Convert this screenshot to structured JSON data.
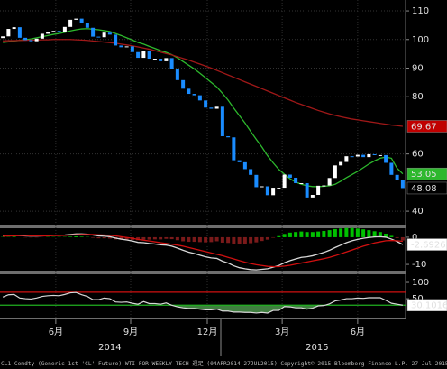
{
  "chart_data": [
    {
      "type": "candlestick",
      "open": [
        100.5,
        101.1,
        103.7,
        104.3,
        100.6,
        99.8,
        99.4,
        100.3,
        102.0,
        102.7,
        103.0,
        102.7,
        104.4,
        106.9,
        107.3,
        105.7,
        104.1,
        101.0,
        100.8,
        102.4,
        101.7,
        97.9,
        97.3,
        97.6,
        95.6,
        93.6,
        96.0,
        93.3,
        93.3,
        92.4,
        93.5,
        89.7,
        85.8,
        82.8,
        81.0,
        80.5,
        78.7,
        76.2,
        75.8,
        76.5,
        66.2,
        65.8,
        57.8,
        57.1,
        54.7,
        52.7,
        48.4,
        48.7,
        45.6,
        48.2,
        48.2,
        52.8,
        51.7,
        49.8,
        49.8,
        44.8,
        45.7,
        48.9,
        49.0,
        51.6,
        56.0,
        57.2,
        59.2,
        59.1,
        59.7,
        58.9,
        59.9,
        59.6,
        59.6,
        56.9,
        52.7,
        50.9
      ],
      "close": [
        101.1,
        103.7,
        104.3,
        100.6,
        99.8,
        99.4,
        100.3,
        102.0,
        102.7,
        103.0,
        102.7,
        104.4,
        106.9,
        107.3,
        105.7,
        104.1,
        101.0,
        100.8,
        102.4,
        101.7,
        97.9,
        97.3,
        97.6,
        95.6,
        93.6,
        96.0,
        93.3,
        93.3,
        92.4,
        93.5,
        89.7,
        85.8,
        82.8,
        81.0,
        80.5,
        78.7,
        76.2,
        75.8,
        76.5,
        66.2,
        65.8,
        57.8,
        57.1,
        54.7,
        52.7,
        48.4,
        48.7,
        45.6,
        48.2,
        48.2,
        52.8,
        51.7,
        49.8,
        49.8,
        44.8,
        45.7,
        48.9,
        49.0,
        51.6,
        56.0,
        57.2,
        59.2,
        59.1,
        59.7,
        58.9,
        59.9,
        59.6,
        59.6,
        56.9,
        52.7,
        50.9,
        48.08
      ],
      "up_color": "#ffffff",
      "down_color": "#1a8cff",
      "close_tag": {
        "bg": "#000000",
        "fg": "#ffffff"
      },
      "lines": [
        {
          "color": "#2db82d",
          "tag": {
            "bg": "#2db82d",
            "fg": "#000000"
          },
          "values": [
            99.0,
            99.2,
            99.5,
            99.7,
            99.9,
            100.2,
            100.6,
            101.0,
            101.4,
            101.8,
            102.1,
            102.5,
            103.0,
            103.4,
            103.7,
            103.8,
            103.6,
            103.4,
            103.1,
            102.8,
            102.1,
            101.4,
            100.6,
            99.8,
            99.0,
            98.4,
            97.6,
            96.9,
            96.1,
            95.5,
            94.7,
            93.6,
            92.3,
            91.0,
            89.7,
            88.2,
            86.6,
            85.0,
            83.4,
            81.2,
            78.8,
            76.0,
            73.4,
            70.8,
            67.9,
            65.1,
            62.4,
            59.4,
            56.9,
            54.6,
            52.9,
            51.3,
            50.2,
            49.4,
            48.9,
            48.6,
            48.6,
            48.7,
            48.9,
            49.4,
            50.5,
            51.7,
            52.8,
            53.9,
            55.2,
            56.5,
            57.6,
            58.5,
            58.9,
            58.5,
            55.0,
            53.05
          ]
        },
        {
          "color": "#a01818",
          "tag": {
            "bg": "#c00000",
            "fg": "#ffffff"
          },
          "values": [
            99.5,
            99.6,
            99.6,
            99.7,
            99.7,
            99.8,
            99.8,
            99.9,
            99.9,
            100.0,
            100.0,
            100.0,
            100.0,
            99.9,
            99.8,
            99.7,
            99.5,
            99.3,
            99.1,
            98.9,
            98.7,
            98.4,
            98.1,
            97.8,
            97.4,
            97.0,
            96.6,
            96.1,
            95.6,
            95.1,
            94.6,
            94.0,
            93.4,
            92.8,
            92.1,
            91.4,
            90.7,
            90.0,
            89.2,
            88.4,
            87.6,
            86.8,
            86.0,
            85.2,
            84.4,
            83.6,
            82.8,
            82.0,
            81.2,
            80.4,
            79.6,
            78.8,
            78.0,
            77.3,
            76.6,
            75.9,
            75.2,
            74.6,
            74.0,
            73.5,
            73.0,
            72.6,
            72.2,
            71.9,
            71.6,
            71.3,
            71.0,
            70.7,
            70.4,
            70.1,
            69.9,
            69.67
          ]
        }
      ],
      "ylim": [
        35.3,
        113.8
      ],
      "yticks": [
        40,
        60,
        80,
        90,
        100,
        110
      ],
      "grid": true
    },
    {
      "type": "macd",
      "histogram": [
        0.1,
        0.1,
        0.2,
        0.0,
        -0.1,
        -0.1,
        -0.1,
        0.0,
        0.1,
        0.1,
        0.1,
        0.1,
        0.2,
        0.3,
        0.2,
        0.1,
        -0.2,
        -0.4,
        -0.4,
        -0.5,
        -0.8,
        -0.9,
        -0.9,
        -1.0,
        -1.1,
        -0.9,
        -0.9,
        -0.8,
        -0.8,
        -0.6,
        -0.7,
        -1.1,
        -1.5,
        -1.7,
        -1.7,
        -1.8,
        -1.9,
        -1.8,
        -1.5,
        -2.0,
        -2.1,
        -2.5,
        -2.6,
        -2.4,
        -2.2,
        -1.9,
        -1.4,
        -0.9,
        -0.2,
        0.4,
        1.2,
        1.7,
        1.9,
        2.1,
        1.9,
        1.9,
        2.1,
        2.3,
        2.6,
        3.0,
        3.2,
        3.4,
        3.4,
        3.2,
        2.9,
        2.6,
        2.2,
        1.9,
        1.3,
        0.5,
        -0.3,
        -1.2
      ],
      "hist_colors": {
        "pos": "#00c000",
        "neg": "#7a1a1a"
      },
      "series": [
        {
          "color": "#d8d8d8",
          "tag": {
            "bg": "#ffffff",
            "fg": "#000000"
          },
          "values": [
            0.5,
            0.6,
            0.7,
            0.6,
            0.5,
            0.4,
            0.4,
            0.5,
            0.6,
            0.7,
            0.7,
            0.8,
            1.0,
            1.2,
            1.2,
            1.1,
            0.8,
            0.5,
            0.4,
            0.2,
            -0.3,
            -0.7,
            -1.0,
            -1.4,
            -1.9,
            -2.0,
            -2.3,
            -2.5,
            -2.8,
            -2.9,
            -3.3,
            -4.0,
            -4.8,
            -5.5,
            -6.0,
            -6.6,
            -7.2,
            -7.6,
            -7.8,
            -8.8,
            -9.5,
            -10.5,
            -11.2,
            -11.6,
            -11.9,
            -12.0,
            -11.8,
            -11.6,
            -11.0,
            -10.4,
            -9.4,
            -8.6,
            -8.0,
            -7.4,
            -7.2,
            -6.8,
            -6.2,
            -5.6,
            -4.8,
            -3.8,
            -2.9,
            -2.0,
            -1.3,
            -0.8,
            -0.4,
            -0.1,
            0.1,
            0.2,
            0.0,
            -0.7,
            -1.6,
            -2.6926
          ]
        },
        {
          "color": "#d01010",
          "values": [
            0.4,
            0.5,
            0.5,
            0.6,
            0.6,
            0.5,
            0.5,
            0.5,
            0.5,
            0.6,
            0.6,
            0.7,
            0.8,
            0.9,
            1.0,
            1.0,
            1.0,
            0.9,
            0.8,
            0.7,
            0.5,
            0.2,
            -0.1,
            -0.4,
            -0.8,
            -1.1,
            -1.4,
            -1.7,
            -2.0,
            -2.3,
            -2.6,
            -2.9,
            -3.3,
            -3.8,
            -4.3,
            -4.8,
            -5.3,
            -5.8,
            -6.3,
            -6.8,
            -7.4,
            -8.0,
            -8.6,
            -9.2,
            -9.7,
            -10.1,
            -10.4,
            -10.7,
            -10.8,
            -10.8,
            -10.6,
            -10.3,
            -9.9,
            -9.5,
            -9.1,
            -8.7,
            -8.3,
            -7.9,
            -7.4,
            -6.8,
            -6.1,
            -5.4,
            -4.7,
            -4.0,
            -3.3,
            -2.7,
            -2.1,
            -1.7,
            -1.3,
            -1.2,
            -1.3,
            -1.5
          ]
        }
      ],
      "ylim": [
        -12.3,
        3.3
      ],
      "yticks": [
        -10,
        0
      ]
    },
    {
      "type": "line",
      "series": [
        {
          "color": "#d8d8d8",
          "tag": {
            "bg": "#ffffff",
            "fg": "#000000"
          },
          "values": [
            55,
            62,
            63,
            52,
            50,
            49,
            52,
            57,
            59,
            60,
            59,
            63,
            68,
            69,
            62,
            57,
            47,
            47,
            52,
            50,
            40,
            39,
            40,
            36,
            33,
            41,
            35,
            35,
            33,
            37,
            30,
            25,
            22,
            20,
            20,
            18,
            16,
            16,
            18,
            12,
            12,
            9,
            9,
            8,
            8,
            6,
            8,
            6,
            14,
            14,
            26,
            25,
            22,
            22,
            18,
            21,
            28,
            29,
            34,
            43,
            46,
            50,
            50,
            52,
            51,
            53,
            53,
            53,
            45,
            36,
            33,
            30.1016
          ]
        }
      ],
      "levels": [
        {
          "value": 70,
          "color": "#d01010"
        },
        {
          "value": 30,
          "color": "#20b020",
          "fill": "#3f7f3f"
        }
      ],
      "ylim": [
        -8,
        125
      ],
      "yticks": [
        50,
        100
      ]
    }
  ],
  "time_axis": {
    "xlim": [
      -0.5,
      71.5
    ],
    "xticks": [
      {
        "value": 9.4,
        "label": "6月"
      },
      {
        "value": 22.7,
        "label": "9月"
      },
      {
        "value": 36.3,
        "label": "12月"
      },
      {
        "value": 49.6,
        "label": "3月"
      },
      {
        "value": 63,
        "label": "6月"
      }
    ],
    "year_ticks": [
      {
        "value": 19,
        "label": "2014"
      },
      {
        "value": 55.8,
        "label": "2015"
      }
    ],
    "year_separator": 38.7
  },
  "footer": "CL1 Comdty (Generic 1st 'CL' Future) WTI FOR WEEKLY TECH 週足 (04APR2014-27JUL2015) Copyright© 2015 Bloomberg Finance L.P. 27-Jul-2015 09:28:44"
}
